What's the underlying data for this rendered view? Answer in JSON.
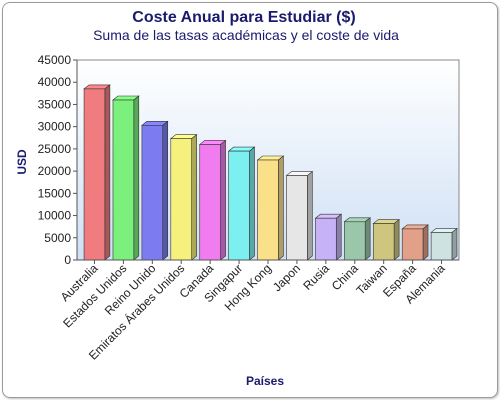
{
  "chart_data": {
    "type": "bar",
    "title": "Coste Anual para Estudiar ($)",
    "subtitle": "Suma de las tasas académicas y el coste de vida",
    "xlabel": "Países",
    "ylabel": "USD",
    "ylim": [
      0,
      45000
    ],
    "yticks": [
      0,
      5000,
      10000,
      15000,
      20000,
      25000,
      30000,
      35000,
      40000,
      45000
    ],
    "grid": false,
    "legend": "none",
    "categories": [
      "Australia",
      "Estados Unidos",
      "Reino Unido",
      "Emiratos Árabes Unidos",
      "Canada",
      "Singapur",
      "Hong Kong",
      "Japon",
      "Rusia",
      "China",
      "Taiwan",
      "España",
      "Alemania"
    ],
    "values": [
      38500,
      36000,
      30300,
      27300,
      26000,
      24500,
      22500,
      19000,
      9400,
      8600,
      8200,
      7000,
      6200
    ],
    "colors": [
      "#f07c80",
      "#7cf07c",
      "#7c7cf0",
      "#f6f07c",
      "#f07cf0",
      "#7cf0f0",
      "#fbe08a",
      "#e6e6e6",
      "#c6b2f6",
      "#9ac6aa",
      "#cec67e",
      "#e2a088",
      "#cee2e2"
    ]
  }
}
